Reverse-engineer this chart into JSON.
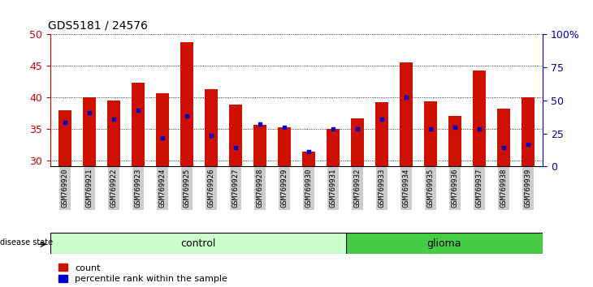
{
  "title": "GDS5181 / 24576",
  "samples": [
    "GSM769920",
    "GSM769921",
    "GSM769922",
    "GSM769923",
    "GSM769924",
    "GSM769925",
    "GSM769926",
    "GSM769927",
    "GSM769928",
    "GSM769929",
    "GSM769930",
    "GSM769931",
    "GSM769932",
    "GSM769933",
    "GSM769934",
    "GSM769935",
    "GSM769936",
    "GSM769937",
    "GSM769938",
    "GSM769939"
  ],
  "counts": [
    38.0,
    40.0,
    39.5,
    42.3,
    40.7,
    48.8,
    41.3,
    38.8,
    35.6,
    35.2,
    31.3,
    35.0,
    36.6,
    39.2,
    45.5,
    39.3,
    37.0,
    44.2,
    38.2,
    40.0
  ],
  "percentile_values": [
    36.0,
    37.5,
    36.5,
    38.0,
    33.5,
    37.0,
    34.0,
    32.0,
    35.8,
    35.2,
    31.3,
    35.0,
    35.0,
    36.5,
    40.0,
    35.0,
    35.2,
    35.0,
    32.0,
    32.5
  ],
  "n_control": 12,
  "n_glioma": 8,
  "ylim_left": [
    29,
    50
  ],
  "bar_color": "#cc1100",
  "dot_color": "#0000cc",
  "control_bg_light": "#ccffcc",
  "glioma_bg_dark": "#44cc44",
  "tick_bg": "#cccccc",
  "left_axis_color": "#cc0000",
  "right_axis_color": "#0000bb",
  "right_ticks": [
    0,
    25,
    50,
    75,
    100
  ],
  "right_tick_labels": [
    "0",
    "25",
    "50",
    "75",
    "100%"
  ],
  "yticks_left": [
    30,
    35,
    40,
    45,
    50
  ]
}
